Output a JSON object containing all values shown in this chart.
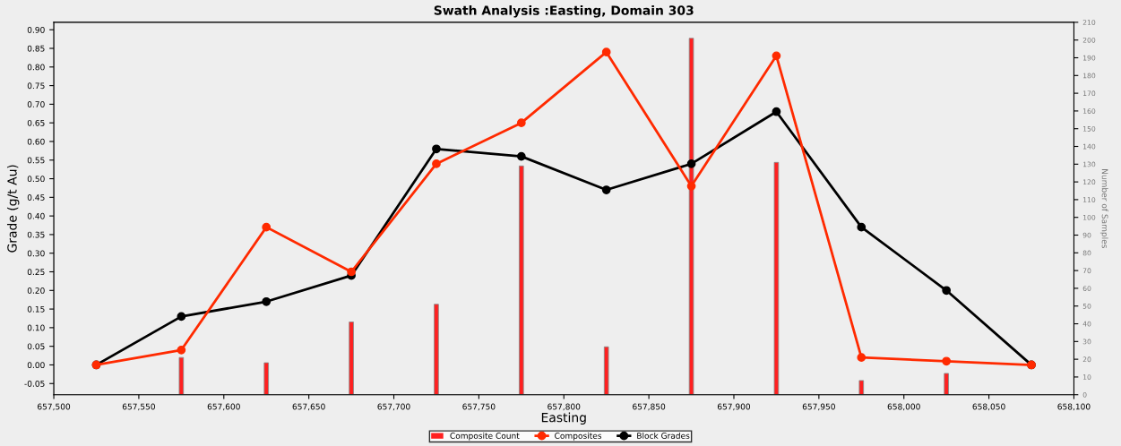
{
  "chart_data": {
    "type": "line",
    "title": "Swath Analysis :Easting, Domain 303",
    "xlabel": "Easting",
    "ylabel": "Grade (g/t Au)",
    "y2label": "Number of Samples",
    "x": [
      657525,
      657575,
      657625,
      657675,
      657725,
      657775,
      657825,
      657875,
      657925,
      657975,
      658025,
      658075
    ],
    "series": [
      {
        "name": "Composite Count",
        "type": "bar",
        "axis": "y2",
        "color": "#ff2020",
        "values": [
          null,
          21,
          18,
          41,
          51,
          129,
          27,
          201,
          131,
          8,
          12,
          null
        ]
      },
      {
        "name": "Composites",
        "color": "#ff2a00",
        "values": [
          0.0,
          0.04,
          0.37,
          0.25,
          0.54,
          0.65,
          0.84,
          0.48,
          0.83,
          0.02,
          0.01,
          0.0
        ]
      },
      {
        "name": "Block Grades",
        "color": "#000000",
        "values": [
          0.0,
          0.13,
          0.17,
          0.24,
          0.58,
          0.56,
          0.47,
          0.54,
          0.68,
          0.37,
          0.2,
          0.0
        ]
      }
    ],
    "xlim": [
      657500,
      658100
    ],
    "xticks": [
      {
        "value": 657500,
        "label": "657,500"
      },
      {
        "value": 657550,
        "label": "657,550"
      },
      {
        "value": 657600,
        "label": "657,600"
      },
      {
        "value": 657650,
        "label": "657,650"
      },
      {
        "value": 657700,
        "label": "657,700"
      },
      {
        "value": 657750,
        "label": "657,750"
      },
      {
        "value": 657800,
        "label": "657,800"
      },
      {
        "value": 657850,
        "label": "657,850"
      },
      {
        "value": 657900,
        "label": "657,900"
      },
      {
        "value": 657950,
        "label": "657,950"
      },
      {
        "value": 658000,
        "label": "658,000"
      },
      {
        "value": 658050,
        "label": "658,050"
      },
      {
        "value": 658100,
        "label": "658,100"
      }
    ],
    "ylim": [
      -0.08,
      0.92
    ],
    "yticks": [
      {
        "value": -0.05,
        "label": "-0.05"
      },
      {
        "value": 0,
        "label": "0.00"
      },
      {
        "value": 0.05,
        "label": "0.05"
      },
      {
        "value": 0.1,
        "label": "0.10"
      },
      {
        "value": 0.15,
        "label": "0.15"
      },
      {
        "value": 0.2,
        "label": "0.20"
      },
      {
        "value": 0.25,
        "label": "0.25"
      },
      {
        "value": 0.3,
        "label": "0.30"
      },
      {
        "value": 0.35,
        "label": "0.35"
      },
      {
        "value": 0.4,
        "label": "0.40"
      },
      {
        "value": 0.45,
        "label": "0.45"
      },
      {
        "value": 0.5,
        "label": "0.50"
      },
      {
        "value": 0.55,
        "label": "0.55"
      },
      {
        "value": 0.6,
        "label": "0.60"
      },
      {
        "value": 0.65,
        "label": "0.65"
      },
      {
        "value": 0.7,
        "label": "0.70"
      },
      {
        "value": 0.75,
        "label": "0.75"
      },
      {
        "value": 0.8,
        "label": "0.80"
      },
      {
        "value": 0.85,
        "label": "0.85"
      },
      {
        "value": 0.9,
        "label": "0.90"
      }
    ],
    "y2lim": [
      0,
      210
    ],
    "y2ticks": [
      0,
      10,
      20,
      30,
      40,
      50,
      60,
      70,
      80,
      90,
      100,
      110,
      120,
      130,
      140,
      150,
      160,
      170,
      180,
      190,
      200,
      210
    ],
    "marker": "circle",
    "line_style": "solid",
    "grid": false,
    "legend": "bottom"
  }
}
